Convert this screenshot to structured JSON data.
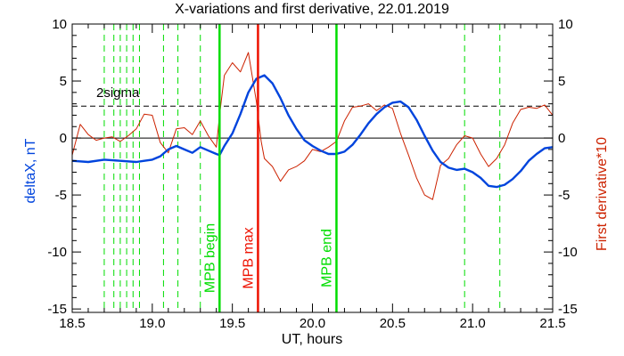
{
  "colors": {
    "x_variation": "#0044dd",
    "derivative": "#cc2200",
    "marker_green": "#00dd00",
    "marker_red": "#ee1100",
    "axis": "#000000"
  },
  "chart_data": {
    "type": "line",
    "title": "X-variations and first derivative, 22.01.2019",
    "xlabel": "UT, hours",
    "ylabel_left": "deltaX, nT",
    "ylabel_right": "First derivative*10",
    "xlim": [
      18.5,
      21.5
    ],
    "ylim": [
      -15.3,
      10
    ],
    "x_ticks": [
      "18.5",
      "19.0",
      "19.5",
      "20.0",
      "20.5",
      "21.0",
      "21.5"
    ],
    "x_tick_values": [
      18.5,
      19.0,
      19.5,
      20.0,
      20.5,
      21.0,
      21.5
    ],
    "y_ticks": [
      "-15",
      "-10",
      "-5",
      "0",
      "5",
      "10"
    ],
    "y_tick_values": [
      -15,
      -10,
      -5,
      0,
      5,
      10
    ],
    "zero_line": 0,
    "threshold": {
      "value": 2.8,
      "label": "2sigma",
      "style": "dashed"
    },
    "dashed_markers_x": [
      18.7,
      18.76,
      18.8,
      18.84,
      18.88,
      18.92,
      19.07,
      19.16,
      19.3,
      20.95,
      21.17
    ],
    "event_lines": [
      {
        "x": 19.42,
        "label": "MPB begin",
        "color": "green"
      },
      {
        "x": 19.66,
        "label": "MPB max",
        "color": "red"
      },
      {
        "x": 20.15,
        "label": "MPB end",
        "color": "green"
      }
    ],
    "series": [
      {
        "name": "deltaX, nT",
        "x": [
          18.5,
          18.6,
          18.7,
          18.8,
          18.9,
          18.95,
          19.0,
          19.05,
          19.1,
          19.15,
          19.2,
          19.25,
          19.3,
          19.35,
          19.4,
          19.42,
          19.45,
          19.5,
          19.55,
          19.6,
          19.65,
          19.7,
          19.75,
          19.8,
          19.85,
          19.9,
          19.95,
          20.0,
          20.05,
          20.1,
          20.15,
          20.2,
          20.25,
          20.3,
          20.35,
          20.4,
          20.45,
          20.5,
          20.55,
          20.6,
          20.65,
          20.7,
          20.75,
          20.8,
          20.85,
          20.9,
          20.95,
          21.0,
          21.05,
          21.1,
          21.15,
          21.2,
          21.25,
          21.3,
          21.35,
          21.4,
          21.45,
          21.5
        ],
        "values": [
          -2.0,
          -2.1,
          -1.9,
          -2.0,
          -2.1,
          -2.0,
          -1.9,
          -1.6,
          -1.0,
          -0.7,
          -1.0,
          -1.3,
          -0.8,
          -1.1,
          -1.4,
          -1.5,
          -0.7,
          0.4,
          2.1,
          4.0,
          5.2,
          5.5,
          4.8,
          3.5,
          2.0,
          0.8,
          -0.2,
          -0.7,
          -1.1,
          -1.4,
          -1.4,
          -1.2,
          -0.6,
          0.3,
          1.3,
          2.1,
          2.7,
          3.1,
          3.2,
          2.7,
          1.6,
          0.2,
          -1.1,
          -2.1,
          -2.6,
          -2.8,
          -2.7,
          -3.0,
          -3.5,
          -4.2,
          -4.3,
          -4.1,
          -3.6,
          -2.9,
          -2.0,
          -1.4,
          -0.9,
          -0.8
        ]
      },
      {
        "name": "First derivative*10",
        "x": [
          18.5,
          18.55,
          18.6,
          18.65,
          18.7,
          18.75,
          18.8,
          18.85,
          18.9,
          18.95,
          19.0,
          19.05,
          19.1,
          19.15,
          19.2,
          19.25,
          19.3,
          19.35,
          19.4,
          19.42,
          19.45,
          19.5,
          19.55,
          19.6,
          19.65,
          19.68,
          19.7,
          19.75,
          19.8,
          19.85,
          19.9,
          19.95,
          20.0,
          20.05,
          20.1,
          20.15,
          20.2,
          20.25,
          20.3,
          20.35,
          20.4,
          20.45,
          20.5,
          20.55,
          20.6,
          20.65,
          20.7,
          20.75,
          20.8,
          20.85,
          20.9,
          20.95,
          21.0,
          21.05,
          21.1,
          21.15,
          21.2,
          21.25,
          21.3,
          21.35,
          21.4,
          21.45,
          21.5
        ],
        "values": [
          -1.5,
          1.2,
          0.3,
          -0.2,
          0.0,
          0.1,
          -0.3,
          0.2,
          0.8,
          2.1,
          2.0,
          -0.4,
          -1.3,
          0.8,
          0.9,
          0.3,
          1.5,
          0.2,
          -0.8,
          2.0,
          5.5,
          6.6,
          5.8,
          7.5,
          3.2,
          -0.3,
          -1.8,
          -2.5,
          -3.8,
          -2.8,
          -2.5,
          -2.0,
          -1.0,
          -1.2,
          -0.8,
          -0.3,
          1.5,
          2.7,
          2.8,
          3.0,
          2.4,
          2.9,
          2.6,
          0.4,
          -1.5,
          -3.5,
          -5.0,
          -5.4,
          -2.4,
          -1.8,
          -0.6,
          0.2,
          0.0,
          -1.4,
          -2.5,
          -1.8,
          -0.6,
          1.3,
          2.5,
          2.7,
          2.6,
          2.9,
          2.0
        ]
      }
    ]
  }
}
